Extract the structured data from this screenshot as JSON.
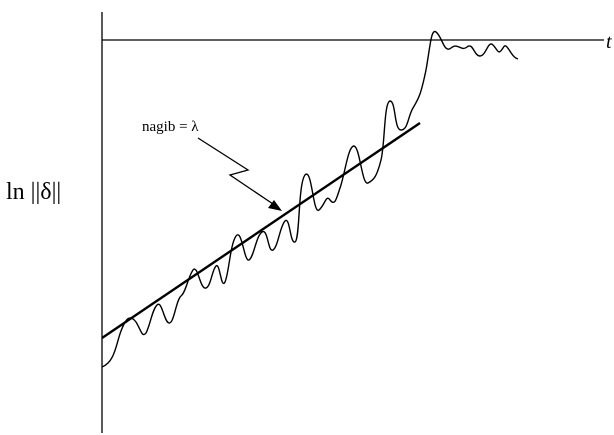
{
  "figure": {
    "ylabel": "ln ||δ||",
    "annotation": "nagib = λ",
    "axis_end_label": "t"
  }
}
